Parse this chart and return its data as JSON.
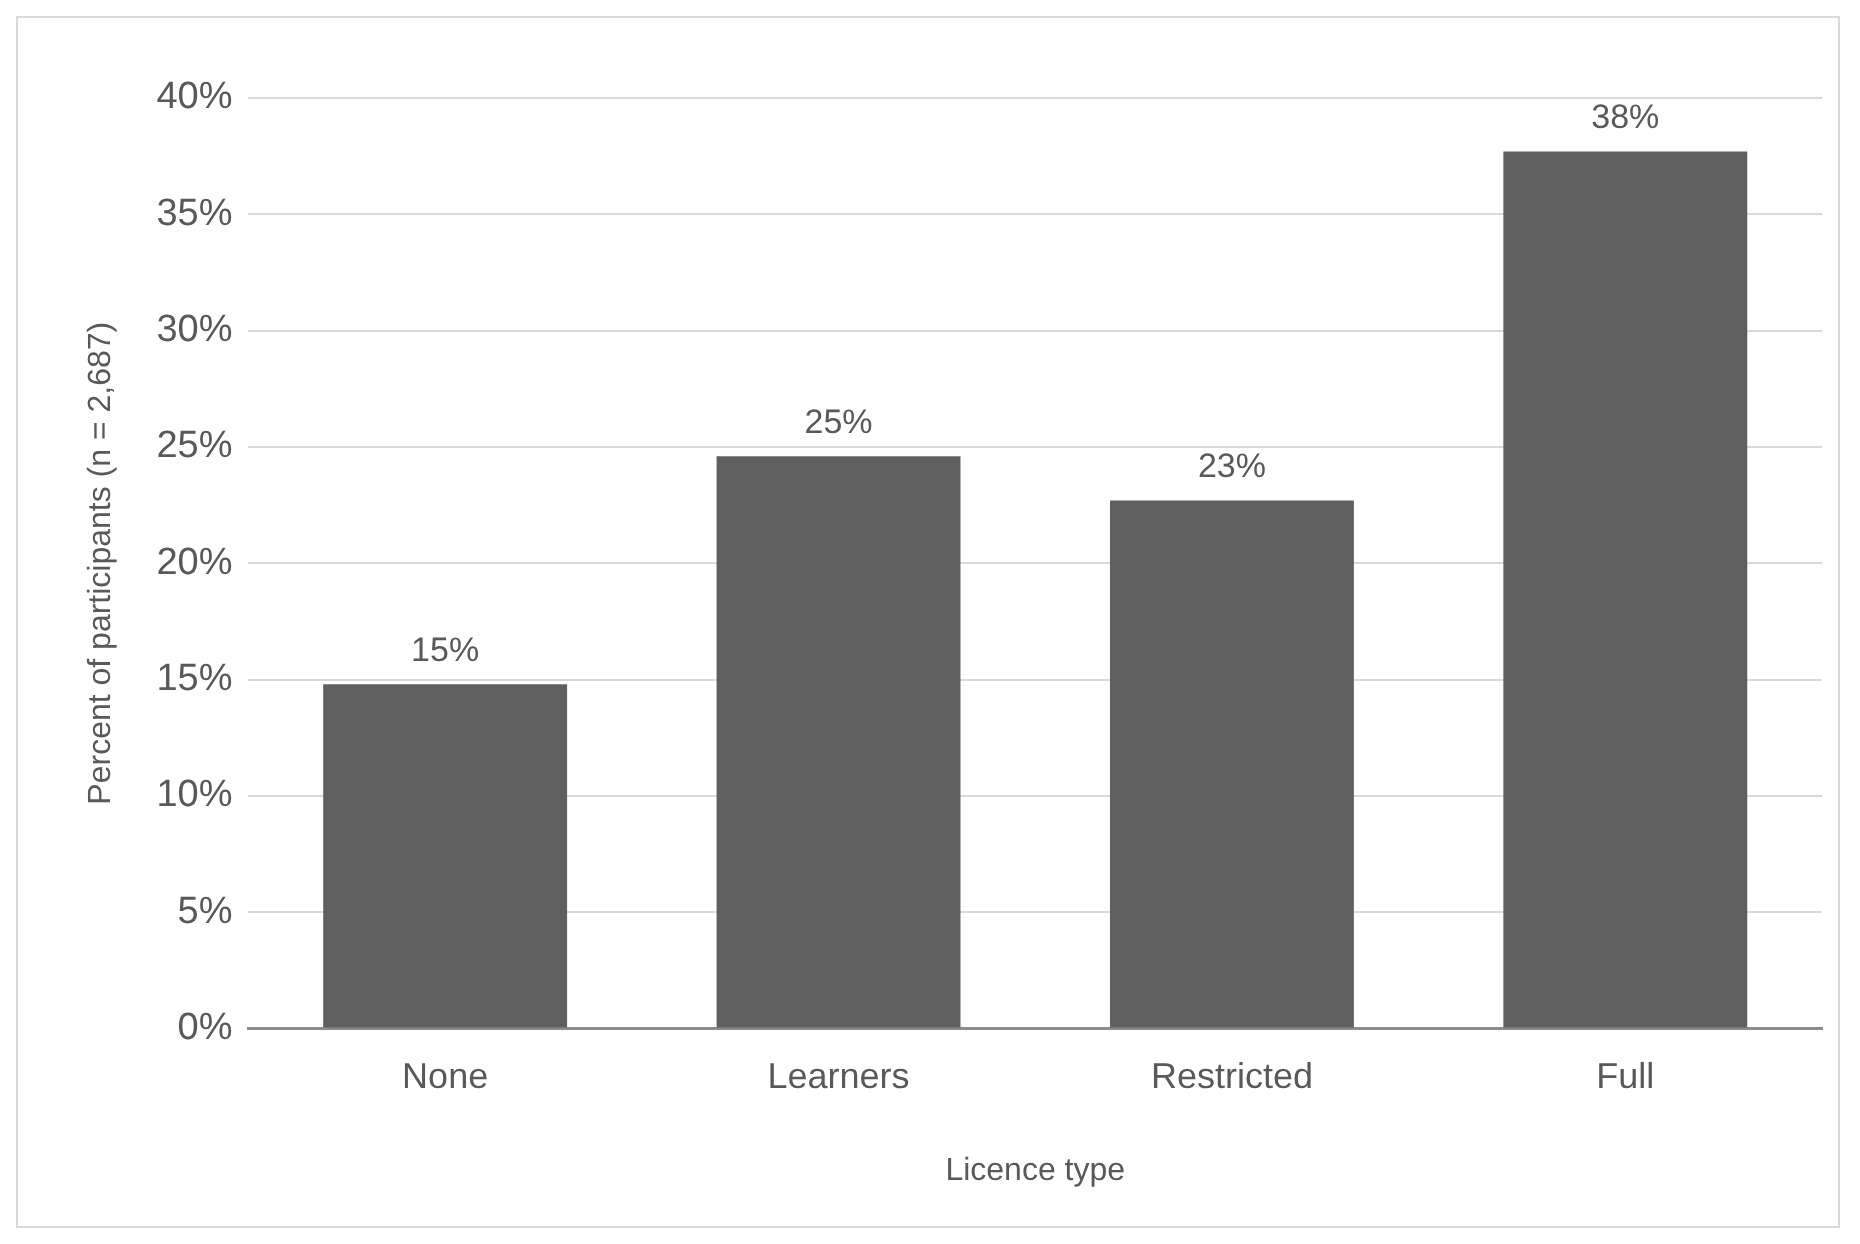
{
  "chart_data": {
    "type": "bar",
    "xlabel": "Licence type",
    "ylabel": "Percent of participants (n = 2,687)",
    "categories": [
      "None",
      "Learners",
      "Restricted",
      "Full"
    ],
    "values": [
      14.8,
      24.6,
      22.7,
      37.7
    ],
    "value_labels": [
      "15%",
      "25%",
      "23%",
      "38%"
    ],
    "color": "#5f5f5f",
    "ylim": [
      0,
      40
    ],
    "yticks": [
      {
        "value": 0,
        "label": "0%"
      },
      {
        "value": 5,
        "label": "5%"
      },
      {
        "value": 10,
        "label": "10%"
      },
      {
        "value": 15,
        "label": "15%"
      },
      {
        "value": 20,
        "label": "20%"
      },
      {
        "value": 25,
        "label": "25%"
      },
      {
        "value": 30,
        "label": "30%"
      },
      {
        "value": 35,
        "label": "35%"
      },
      {
        "value": 40,
        "label": "40%"
      }
    ],
    "grid": "y",
    "legend": false
  }
}
